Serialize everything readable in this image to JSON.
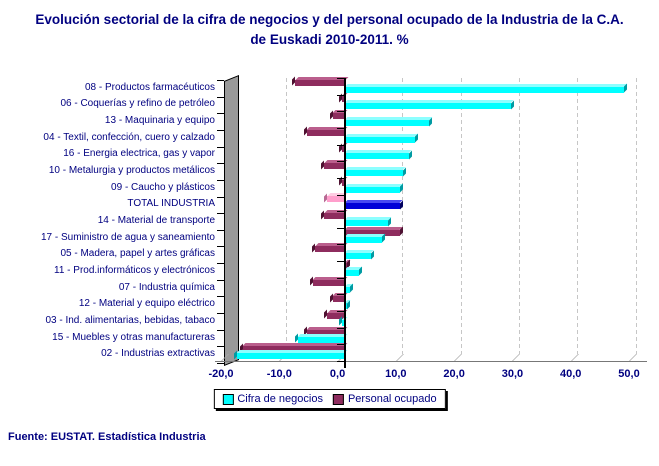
{
  "title": "Evolución sectorial de la cifra de negocios y del personal ocupado de la Industria de la C.A. de Euskadi 2010-2011. %",
  "footer": "Fuente: EUSTAT. Estadística Industria",
  "colors": {
    "title_text": "#000080",
    "axis_text": "#000080",
    "cifra_bar": "#00FFFF",
    "personal_bar": "#8E2C5E",
    "total_cifra_bar": "#0000D8",
    "total_personal_bar": "#FF9FCC"
  },
  "chart_data": {
    "type": "bar",
    "orientation": "horizontal",
    "title": "Evolución sectorial de la cifra de negocios y del personal ocupado de la Industria de la C.A. de Euskadi 2010-2011. %",
    "categories": [
      "08 - Productos farmacéuticos",
      "06 - Coquerías y refino de petróleo",
      "13 - Maquinaria y equipo",
      "04 - Textil, confección, cuero y calzado",
      "16 - Energia electrica, gas y vapor",
      "10 - Metalurgia y productos metálicos",
      "09 - Caucho y plásticos",
      "TOTAL INDUSTRIA",
      "14 - Material de transporte",
      "17 - Suministro de agua y saneamiento",
      "05 - Madera, papel y artes gráficas",
      "11 - Prod.informáticos y electrónicos",
      "07 - Industria química",
      "12 - Material y equipo eléctrico",
      "03 - Ind. alimentarias, bebidas, tabaco",
      "15 - Muebles y otras manufactureras",
      "02 - Industrias extractivas"
    ],
    "series": [
      {
        "name": "Cifra de negocios",
        "color": "#00FFFF",
        "color_top": "#8CFFFF",
        "color_cap": "#009BA3",
        "values": [
          48.0,
          28.5,
          14.5,
          12.0,
          11.0,
          10.0,
          9.5,
          9.5,
          7.5,
          6.5,
          4.5,
          2.5,
          1.0,
          0.5,
          -0.5,
          -8.0,
          -18.5
        ]
      },
      {
        "name": "Personal ocupado",
        "color": "#8E2C5E",
        "color_top": "#BA5E8C",
        "color_cap": "#4E1131",
        "values": [
          -8.5,
          -0.5,
          -2.0,
          -6.5,
          -0.5,
          -3.5,
          -0.5,
          -3.0,
          -3.5,
          9.5,
          -5.0,
          0.5,
          -5.5,
          -2.0,
          -3.0,
          -6.5,
          -17.5
        ]
      }
    ],
    "highlight_category": "TOTAL INDUSTRIA",
    "highlight_colors": {
      "cifra": {
        "color": "#0000D8",
        "color_top": "#4848F2",
        "color_cap": "#000060"
      },
      "personal": {
        "color": "#FF9FCC",
        "color_top": "#FFCCE2",
        "color_cap": "#B86A94"
      }
    },
    "xlim": [
      -20,
      50
    ],
    "xtick_step": 10,
    "xtick_labels": [
      "-20,0",
      "-10,0",
      "0,0",
      "10,0",
      "20,0",
      "30,0",
      "40,0",
      "50,0"
    ],
    "grid": true,
    "legend_position": "bottom"
  }
}
